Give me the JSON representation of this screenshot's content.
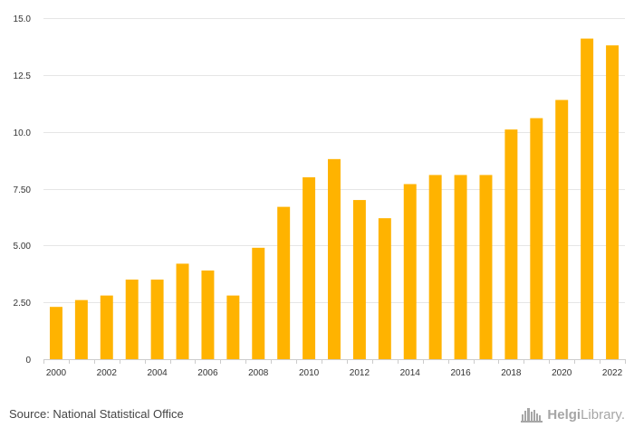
{
  "chart_data": {
    "type": "bar",
    "categories": [
      "2000",
      "2001",
      "2002",
      "2003",
      "2004",
      "2005",
      "2006",
      "2007",
      "2008",
      "2009",
      "2010",
      "2011",
      "2012",
      "2013",
      "2014",
      "2015",
      "2016",
      "2017",
      "2018",
      "2019",
      "2020",
      "2021",
      "2022"
    ],
    "values": [
      2.3,
      2.6,
      2.8,
      3.5,
      3.5,
      4.2,
      3.9,
      2.8,
      4.9,
      6.7,
      8.0,
      8.8,
      7.0,
      6.2,
      7.7,
      8.1,
      8.1,
      8.1,
      10.1,
      10.6,
      11.4,
      14.1,
      13.8
    ],
    "x_tick_labels": [
      "2000",
      "2002",
      "2004",
      "2006",
      "2008",
      "2010",
      "2012",
      "2014",
      "2016",
      "2018",
      "2020",
      "2022"
    ],
    "y_ticks": [
      0,
      2.5,
      5,
      7.5,
      10,
      12.5,
      15
    ],
    "y_tick_labels": [
      "0",
      "2.50",
      "5.00",
      "7.50",
      "10.0",
      "12.5",
      "15.0"
    ],
    "ylim": [
      0,
      15
    ],
    "title": "",
    "xlabel": "",
    "ylabel": "",
    "grid": true,
    "bar_color": "#FFB300",
    "grid_color": "#E6E6E6"
  },
  "footer": {
    "source": "Source: National Statistical Office",
    "logo_part1": "Helgi",
    "logo_part2": "Library",
    "logo_dot": ".",
    "logo_icon": "helgi-library-skyline-icon",
    "logo_color": "#A6A6A6"
  }
}
